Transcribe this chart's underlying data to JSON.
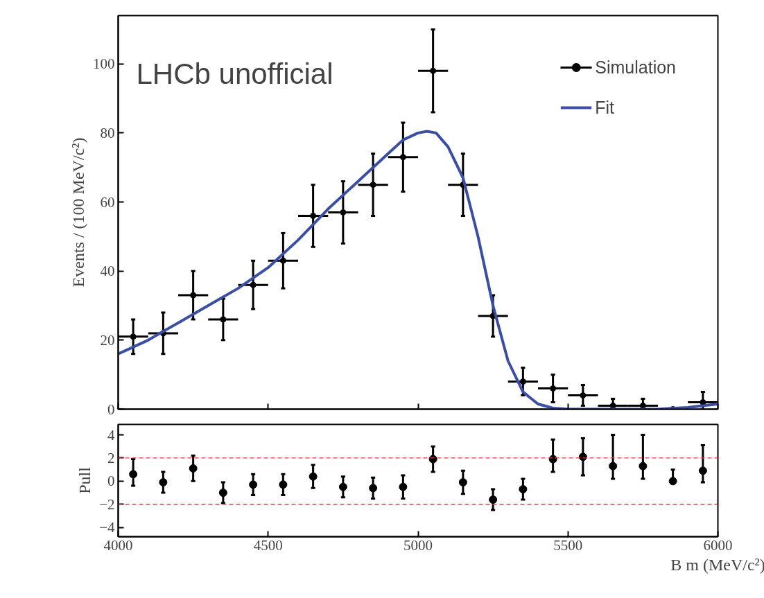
{
  "chart_data": [
    {
      "type": "scatter",
      "ylabel": "Events / (100 MeV/c²)",
      "annotations": [
        "LHCb unofficial"
      ],
      "x": [
        4050,
        4150,
        4250,
        4350,
        4450,
        4550,
        4650,
        4750,
        4850,
        4950,
        5050,
        5150,
        5250,
        5350,
        5450,
        5550,
        5650,
        5750,
        5850,
        5950
      ],
      "series": [
        {
          "name": "Simulation",
          "color": "#000000",
          "marker": "circle",
          "values": [
            21,
            22,
            33,
            26,
            36,
            43,
            56,
            57,
            65,
            73,
            98,
            65,
            27,
            8,
            6,
            4,
            1,
            1,
            0,
            2
          ],
          "errors": [
            5,
            6,
            7,
            6,
            7,
            8,
            9,
            9,
            9,
            10,
            12,
            9,
            6,
            4,
            4,
            3,
            2,
            2,
            null,
            3
          ],
          "xerrors": [
            50,
            50,
            50,
            50,
            50,
            50,
            50,
            50,
            50,
            50,
            50,
            50,
            50,
            50,
            50,
            50,
            50,
            50,
            50,
            50
          ]
        },
        {
          "name": "Fit",
          "type": "line",
          "color": "#3a4ea3",
          "line_style": "solid",
          "x": [
            4000,
            4100,
            4200,
            4300,
            4400,
            4500,
            4600,
            4700,
            4800,
            4900,
            4950,
            5000,
            5030,
            5060,
            5100,
            5150,
            5200,
            5250,
            5300,
            5350,
            5400,
            5450,
            5500,
            5600,
            5700,
            5800,
            5900,
            6000
          ],
          "values": [
            16,
            20,
            25,
            30,
            35,
            41,
            49,
            58,
            66,
            74,
            78,
            80,
            80.5,
            80,
            76,
            67,
            50,
            30,
            14,
            5,
            1.5,
            0.3,
            0,
            0,
            0,
            0,
            0.5,
            1.5
          ]
        }
      ],
      "xlim": [
        4000,
        6000
      ],
      "xticks": [
        4000,
        4500,
        5000,
        5500,
        6000
      ],
      "ylim": [
        0,
        114
      ],
      "yticks": [
        0,
        20,
        40,
        60,
        80,
        100
      ],
      "tick_labels": "y",
      "legend": "top right",
      "grid": false
    },
    {
      "type": "scatter",
      "xlabel": "B m (MeV/c²)",
      "ylabel": "Pull",
      "x": [
        4050,
        4150,
        4250,
        4350,
        4450,
        4550,
        4650,
        4750,
        4850,
        4950,
        5050,
        5150,
        5250,
        5350,
        5450,
        5550,
        5650,
        5750,
        5850,
        5950
      ],
      "series": [
        {
          "color": "#000000",
          "marker": "circle",
          "values": [
            0.6,
            -0.1,
            1.1,
            -1.0,
            -0.3,
            -0.3,
            0.4,
            -0.5,
            -0.6,
            -0.5,
            1.9,
            -0.1,
            -1.6,
            -0.7,
            1.9,
            2.1,
            1.3,
            1.3,
            0.0,
            0.9
          ],
          "errors": [
            [
              -0.4,
              1.9
            ],
            0.9,
            1.1,
            0.9,
            0.9,
            0.9,
            1.0,
            0.9,
            0.9,
            1.0,
            1.1,
            1.0,
            0.9,
            0.9,
            [
              0.8,
              3.6
            ],
            1.6,
            [
              0.2,
              4.0
            ],
            [
              0.2,
              4.0
            ],
            [
              0.0,
              1.0
            ],
            [
              -0.1,
              3.1
            ]
          ]
        }
      ],
      "ref_lines": [
        {
          "axis": "y",
          "value": 2,
          "color": "#e8383d",
          "line_style": "dashed"
        },
        {
          "axis": "y",
          "value": -2,
          "color": "#e8383d",
          "line_style": "dashed"
        }
      ],
      "xlim": [
        4000,
        6000
      ],
      "xticks": [
        4000,
        4500,
        5000,
        5500,
        6000
      ],
      "ylim": [
        -4.8,
        4.9
      ],
      "yticks": [
        {
          "value": -4,
          "label": "−4"
        },
        {
          "value": -2,
          "label": "−2"
        },
        0,
        2,
        4
      ],
      "grid": false
    }
  ]
}
